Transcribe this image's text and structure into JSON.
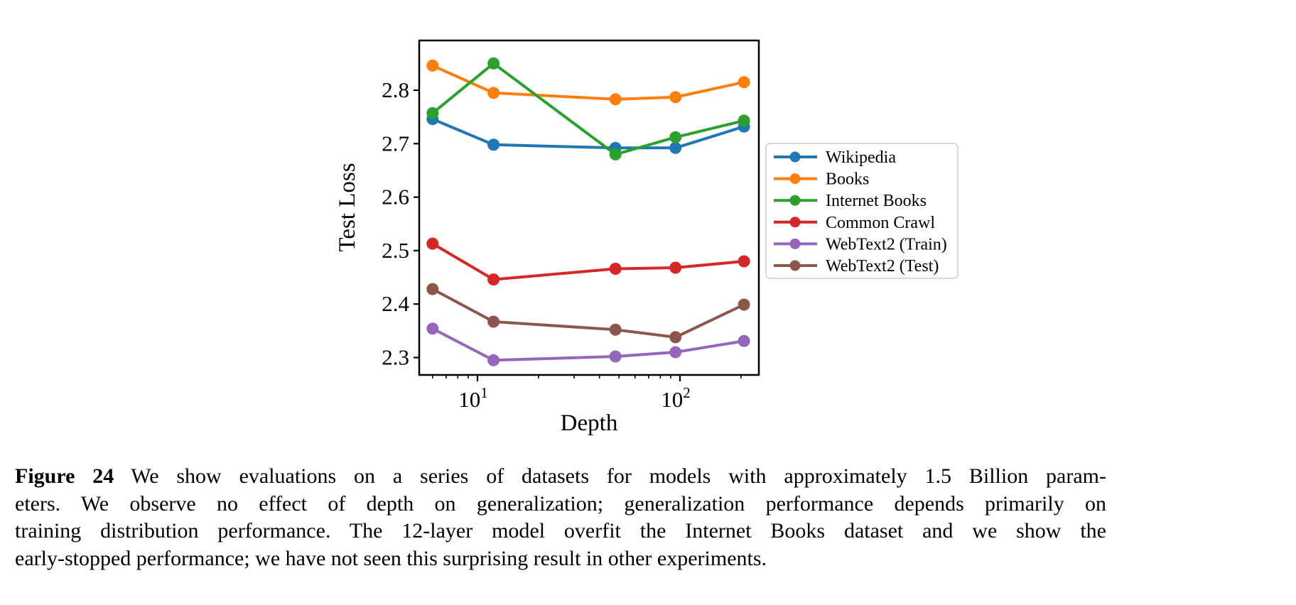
{
  "figure": {
    "caption": {
      "label": "Figure 24",
      "lines": [
        "We show evaluations on a series of datasets for models with approximately 1.5 Billion param-",
        "eters. We observe no effect of depth on generalization; generalization performance depends primarily on",
        "training distribution performance. The 12-layer model overfit the Internet Books dataset and we show the",
        "early-stopped performance; we have not seen this surprising result in other experiments."
      ]
    }
  },
  "chart_data": {
    "type": "line",
    "title": "",
    "xlabel": "Depth",
    "ylabel": "Test Loss",
    "xscale": "log",
    "grid": false,
    "x": [
      6,
      12,
      48,
      95,
      207
    ],
    "series": [
      {
        "name": "Wikipedia",
        "color": "#1f77b4",
        "values": [
          2.746,
          2.698,
          2.692,
          2.692,
          2.732
        ]
      },
      {
        "name": "Books",
        "color": "#ff7f0e",
        "values": [
          2.846,
          2.795,
          2.783,
          2.787,
          2.815
        ]
      },
      {
        "name": "Internet Books",
        "color": "#2ca02c",
        "values": [
          2.757,
          2.85,
          2.68,
          2.712,
          2.743
        ]
      },
      {
        "name": "Common Crawl",
        "color": "#d62728",
        "values": [
          2.513,
          2.446,
          2.466,
          2.468,
          2.48
        ]
      },
      {
        "name": "WebText2 (Train)",
        "color": "#9467bd",
        "values": [
          2.354,
          2.295,
          2.302,
          2.31,
          2.331
        ]
      },
      {
        "name": "WebText2 (Test)",
        "color": "#8c564b",
        "values": [
          2.428,
          2.367,
          2.352,
          2.338,
          2.399
        ]
      }
    ],
    "yticks": [
      2.3,
      2.4,
      2.5,
      2.6,
      2.7,
      2.8
    ],
    "xticks_major": [
      10,
      100
    ],
    "xticks_minor": [
      6,
      7,
      8,
      9,
      20,
      30,
      40,
      50,
      60,
      70,
      80,
      90,
      200
    ],
    "xlim": [
      5.2,
      245
    ],
    "ylim": [
      2.267,
      2.893
    ],
    "legend": {
      "position": "right"
    }
  }
}
